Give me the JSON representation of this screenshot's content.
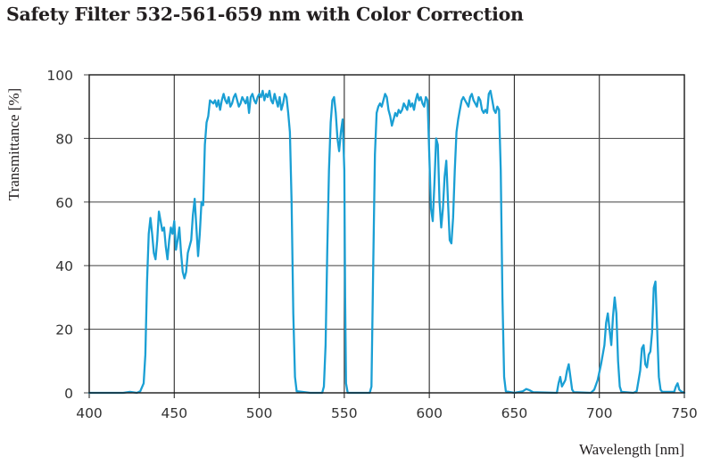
{
  "chart_data": {
    "type": "line",
    "title": "Safety Filter 532-561-659 nm with Color Correction",
    "xlabel": "Wavelength [nm]",
    "ylabel": "Transmittance [%]",
    "xlim": [
      400,
      750
    ],
    "ylim": [
      0,
      100
    ],
    "x_ticks": [
      400,
      450,
      500,
      550,
      600,
      650,
      700,
      750
    ],
    "y_ticks": [
      0,
      20,
      40,
      60,
      80,
      100
    ],
    "grid": true,
    "legend": null,
    "line_color": "#1a9fd4",
    "series": [
      {
        "name": "Transmittance",
        "points": [
          [
            400,
            0
          ],
          [
            420,
            0
          ],
          [
            424,
            0.3
          ],
          [
            428,
            0
          ],
          [
            430,
            0.5
          ],
          [
            432,
            3
          ],
          [
            433,
            12
          ],
          [
            434,
            35
          ],
          [
            435,
            50
          ],
          [
            436,
            55
          ],
          [
            437,
            50
          ],
          [
            438,
            44
          ],
          [
            439,
            42
          ],
          [
            440,
            48
          ],
          [
            441,
            57
          ],
          [
            442,
            54
          ],
          [
            443,
            51
          ],
          [
            444,
            52
          ],
          [
            445,
            46
          ],
          [
            446,
            42
          ],
          [
            447,
            48
          ],
          [
            448,
            52
          ],
          [
            449,
            50
          ],
          [
            450,
            54
          ],
          [
            451,
            45
          ],
          [
            452,
            48
          ],
          [
            453,
            52
          ],
          [
            454,
            44
          ],
          [
            455,
            38
          ],
          [
            456,
            36
          ],
          [
            457,
            38
          ],
          [
            458,
            44
          ],
          [
            459,
            46
          ],
          [
            460,
            48
          ],
          [
            461,
            56
          ],
          [
            462,
            61
          ],
          [
            463,
            52
          ],
          [
            464,
            43
          ],
          [
            465,
            50
          ],
          [
            466,
            60
          ],
          [
            467,
            59
          ],
          [
            468,
            78
          ],
          [
            469,
            85
          ],
          [
            470,
            87
          ],
          [
            471,
            92
          ],
          [
            473,
            91
          ],
          [
            474,
            92
          ],
          [
            475,
            90
          ],
          [
            476,
            92
          ],
          [
            477,
            89
          ],
          [
            478,
            92
          ],
          [
            479,
            94
          ],
          [
            480,
            92
          ],
          [
            481,
            91
          ],
          [
            482,
            93
          ],
          [
            483,
            90
          ],
          [
            484,
            91
          ],
          [
            485,
            93
          ],
          [
            486,
            94
          ],
          [
            487,
            92
          ],
          [
            488,
            90
          ],
          [
            489,
            91
          ],
          [
            490,
            93
          ],
          [
            491,
            92
          ],
          [
            492,
            91
          ],
          [
            493,
            93
          ],
          [
            494,
            88
          ],
          [
            495,
            93
          ],
          [
            496,
            94
          ],
          [
            497,
            92
          ],
          [
            498,
            91
          ],
          [
            499,
            93
          ],
          [
            500,
            94
          ],
          [
            501,
            93
          ],
          [
            502,
            95
          ],
          [
            503,
            92
          ],
          [
            504,
            94
          ],
          [
            505,
            93
          ],
          [
            506,
            95
          ],
          [
            507,
            92
          ],
          [
            508,
            91
          ],
          [
            509,
            94
          ],
          [
            510,
            92
          ],
          [
            511,
            90
          ],
          [
            512,
            93
          ],
          [
            513,
            89
          ],
          [
            514,
            91
          ],
          [
            515,
            94
          ],
          [
            516,
            93
          ],
          [
            517,
            88
          ],
          [
            518,
            82
          ],
          [
            519,
            60
          ],
          [
            520,
            25
          ],
          [
            521,
            5
          ],
          [
            522,
            0.5
          ],
          [
            530,
            0
          ],
          [
            537,
            0
          ],
          [
            538,
            2
          ],
          [
            539,
            15
          ],
          [
            540,
            45
          ],
          [
            541,
            70
          ],
          [
            542,
            85
          ],
          [
            543,
            92
          ],
          [
            544,
            93
          ],
          [
            545,
            88
          ],
          [
            546,
            80
          ],
          [
            547,
            76
          ],
          [
            548,
            82
          ],
          [
            549,
            86
          ],
          [
            550,
            70
          ],
          [
            550.5,
            30
          ],
          [
            551,
            3
          ],
          [
            552,
            0
          ],
          [
            565,
            0
          ],
          [
            566,
            2
          ],
          [
            567,
            40
          ],
          [
            568,
            75
          ],
          [
            569,
            88
          ],
          [
            570,
            90
          ],
          [
            571,
            91
          ],
          [
            572,
            90
          ],
          [
            573,
            92
          ],
          [
            574,
            94
          ],
          [
            575,
            93
          ],
          [
            576,
            89
          ],
          [
            577,
            87
          ],
          [
            578,
            84
          ],
          [
            579,
            86
          ],
          [
            580,
            88
          ],
          [
            581,
            87
          ],
          [
            582,
            89
          ],
          [
            583,
            88
          ],
          [
            584,
            89
          ],
          [
            585,
            91
          ],
          [
            586,
            90
          ],
          [
            587,
            89
          ],
          [
            588,
            92
          ],
          [
            589,
            90
          ],
          [
            590,
            91
          ],
          [
            591,
            89
          ],
          [
            592,
            92
          ],
          [
            593,
            94
          ],
          [
            594,
            92
          ],
          [
            595,
            93
          ],
          [
            596,
            91
          ],
          [
            597,
            90
          ],
          [
            598,
            93
          ],
          [
            599,
            92
          ],
          [
            600,
            75
          ],
          [
            601,
            58
          ],
          [
            602,
            54
          ],
          [
            603,
            66
          ],
          [
            604,
            80
          ],
          [
            605,
            78
          ],
          [
            606,
            60
          ],
          [
            607,
            52
          ],
          [
            608,
            58
          ],
          [
            609,
            68
          ],
          [
            610,
            73
          ],
          [
            611,
            60
          ],
          [
            612,
            48
          ],
          [
            613,
            47
          ],
          [
            614,
            55
          ],
          [
            615,
            70
          ],
          [
            616,
            82
          ],
          [
            617,
            86
          ],
          [
            618,
            89
          ],
          [
            619,
            92
          ],
          [
            620,
            93
          ],
          [
            621,
            92
          ],
          [
            622,
            91
          ],
          [
            623,
            90
          ],
          [
            624,
            93
          ],
          [
            625,
            94
          ],
          [
            626,
            92
          ],
          [
            627,
            91
          ],
          [
            628,
            90
          ],
          [
            629,
            93
          ],
          [
            630,
            92
          ],
          [
            631,
            89
          ],
          [
            632,
            88
          ],
          [
            633,
            89
          ],
          [
            634,
            88
          ],
          [
            635,
            94
          ],
          [
            636,
            95
          ],
          [
            637,
            92
          ],
          [
            638,
            89
          ],
          [
            639,
            88
          ],
          [
            640,
            90
          ],
          [
            641,
            89
          ],
          [
            642,
            70
          ],
          [
            643,
            30
          ],
          [
            644,
            5
          ],
          [
            645,
            0.5
          ],
          [
            650,
            0
          ],
          [
            655,
            0.5
          ],
          [
            657,
            1.2
          ],
          [
            659,
            0.8
          ],
          [
            661,
            0.2
          ],
          [
            675,
            0
          ],
          [
            676,
            3
          ],
          [
            677,
            5
          ],
          [
            678,
            2
          ],
          [
            679,
            3
          ],
          [
            680,
            4
          ],
          [
            681,
            7
          ],
          [
            682,
            9
          ],
          [
            683,
            5
          ],
          [
            684,
            1
          ],
          [
            685,
            0.2
          ],
          [
            695,
            0
          ],
          [
            697,
            1
          ],
          [
            699,
            4
          ],
          [
            701,
            9
          ],
          [
            703,
            15
          ],
          [
            704,
            22
          ],
          [
            705,
            25
          ],
          [
            706,
            20
          ],
          [
            707,
            15
          ],
          [
            708,
            24
          ],
          [
            709,
            30
          ],
          [
            710,
            25
          ],
          [
            711,
            10
          ],
          [
            712,
            2
          ],
          [
            713,
            0.3
          ],
          [
            720,
            0
          ],
          [
            722,
            0.5
          ],
          [
            724,
            7
          ],
          [
            725,
            14
          ],
          [
            726,
            15
          ],
          [
            727,
            9
          ],
          [
            728,
            8
          ],
          [
            729,
            12
          ],
          [
            730,
            13
          ],
          [
            731,
            19
          ],
          [
            732,
            33
          ],
          [
            733,
            35
          ],
          [
            734,
            20
          ],
          [
            735,
            5
          ],
          [
            736,
            1
          ],
          [
            737,
            0.3
          ],
          [
            744,
            0.3
          ],
          [
            745,
            2
          ],
          [
            746,
            3
          ],
          [
            747,
            1
          ],
          [
            748,
            0.5
          ],
          [
            750,
            0
          ]
        ]
      }
    ]
  }
}
